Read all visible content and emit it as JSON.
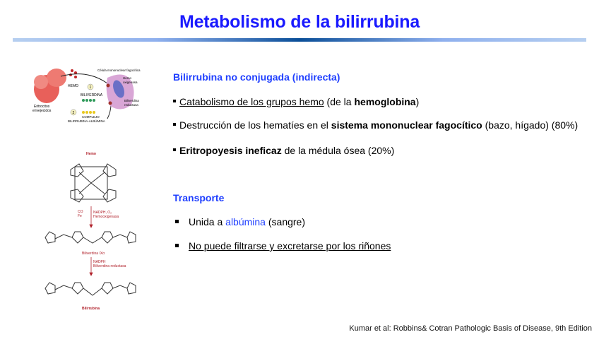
{
  "title": "Metabolismo de la bilirrubina",
  "section1": {
    "heading": "Bilirrubina no conjugada (indirecta)",
    "bullets": [
      [
        {
          "text": "Catabolismo de los grupos hemo",
          "style": "u"
        },
        {
          "text": " (de la ",
          "style": ""
        },
        {
          "text": "hemoglobina",
          "style": "b"
        },
        {
          "text": ")",
          "style": ""
        }
      ],
      [
        {
          "text": "Destrucción de los hematíes en el ",
          "style": ""
        },
        {
          "text": "sistema mononuclear fagocítico",
          "style": "b"
        },
        {
          "text": " (bazo, hígado) (80%)",
          "style": ""
        }
      ],
      [
        {
          "text": "Eritropoyesis ineficaz",
          "style": "b"
        },
        {
          "text": " de la médula ósea (20%)",
          "style": ""
        }
      ]
    ]
  },
  "section2": {
    "heading": "Transporte",
    "bullets": [
      [
        {
          "text": "Unida a ",
          "style": ""
        },
        {
          "text": "albúmina",
          "style": "blue"
        },
        {
          "text": " (sangre)",
          "style": ""
        }
      ],
      [
        {
          "text": "No puede filtrarse y excretarse por los riñones",
          "style": "u"
        }
      ]
    ]
  },
  "figure1": {
    "labels": {
      "cell": "Célula mononuclear fagocítica",
      "heme_oxygenase": "Hemo oxigenasa",
      "hemo": "HEMO",
      "biliverdina": "BILIVERDINA",
      "reductase": "Biliverdina reductasa",
      "erythrocytes": "Eritrocitos envejecidos",
      "complex": "COMPLEJO BILIRRUBINA-ALBÚMINA",
      "step1": "1",
      "step2": "2"
    },
    "colors": {
      "rbc": "#e8605a",
      "cell": "#d9a6d6",
      "nucleus": "#6a6fc6",
      "green": "#2f9a5a",
      "yellow": "#e8c81e"
    }
  },
  "figure2": {
    "labels": {
      "heme": "Hemo",
      "co": "CO",
      "fe": "Fe",
      "step1": "NADPH, O₂ Hemooxigenasa",
      "biliverdin": "Biliverdina IXα",
      "step2": "NADPH Biliverdina reductasa",
      "bilirubin": "Bilirrubina"
    },
    "colors": {
      "label": "#b0202a"
    }
  },
  "citation": "Kumar et al: Robbins& Cotran Pathologic Basis of Disease, 9th Edition"
}
